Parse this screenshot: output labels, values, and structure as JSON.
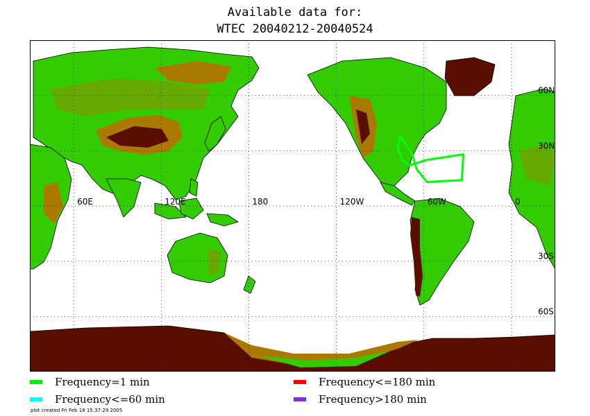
{
  "title": {
    "line1": "Available data for:",
    "line2": "WTEC 20040212-20040524"
  },
  "map": {
    "projection": "cylindrical equidistant, centered 180",
    "lon_labels": [
      "60E",
      "120E",
      "180",
      "120W",
      "60W",
      "0"
    ],
    "lat_labels": [
      "60N",
      "30N",
      "30S",
      "60S"
    ],
    "grid": true,
    "topography_colors": {
      "lowland": "#33cc00",
      "midland": "#66aa00",
      "highland": "#aa7a00",
      "peak": "#5a0e00",
      "coast": "#000000"
    },
    "ship_track": {
      "color": "#00ff00",
      "description_points": [
        [
          -76,
          38
        ],
        [
          -78,
          32
        ],
        [
          -75,
          25
        ],
        [
          -70,
          22
        ],
        [
          -58,
          25
        ],
        [
          -33,
          28
        ],
        [
          -34,
          14
        ],
        [
          -58,
          13
        ],
        [
          -65,
          20
        ],
        [
          -68,
          28
        ],
        [
          -72,
          33
        ],
        [
          -76,
          38
        ]
      ]
    }
  },
  "legend": {
    "items": [
      {
        "label": "Frequency=1 min",
        "color": "#00ee00"
      },
      {
        "label": "Frequency<=60 min",
        "color": "#00ffff"
      },
      {
        "label": "Frequency<=180 min",
        "color": "#ff0000"
      },
      {
        "label": "Frequency>180 min",
        "color": "#8a2be2"
      }
    ]
  },
  "footnote": "plot created Fri Feb 18 15:37:29 2005"
}
